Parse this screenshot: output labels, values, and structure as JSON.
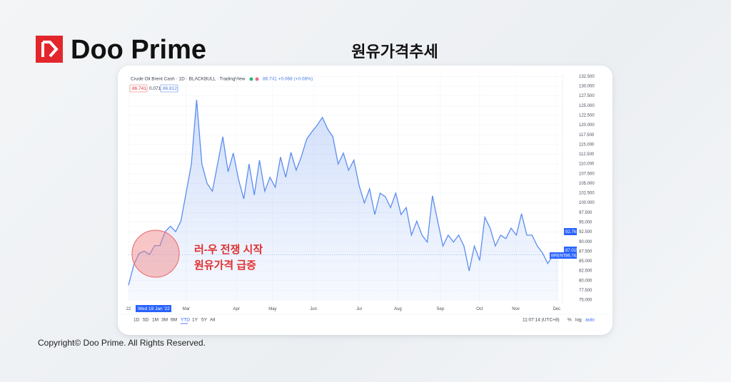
{
  "brand": "Doo Prime",
  "heading": "원유가격추세",
  "copyright": "Copyright© Doo Prime. All Rights Reserved.",
  "chart_data": {
    "type": "line",
    "title": "Crude Oil Brent Cash · 1D · BLACKBULL · TradingView",
    "legend_values": "86.741 +0.068 (+0.08%)",
    "badges": [
      "86.741",
      "0.071",
      "86.812"
    ],
    "annotation": [
      "러-우 전쟁 시작",
      "원유가격 급증"
    ],
    "crosshair_date": "Wed 19 Jan '22",
    "price_labels": [
      "92.761",
      "87.015",
      "86.741"
    ],
    "symbol": "BRENT",
    "ranges": [
      "1D",
      "5D",
      "1M",
      "3M",
      "6M",
      "YTD",
      "1Y",
      "5Y",
      "All"
    ],
    "active_range": "YTD",
    "clock": "11:07:14 (UTC+8)",
    "scale_buttons": [
      "%",
      "log",
      "auto"
    ],
    "color": "#5b8def",
    "grid": true,
    "values": [
      78.8,
      84,
      87,
      87.6,
      86.7,
      89,
      89,
      92.6,
      94,
      92.6,
      95.3,
      102.7,
      110,
      126.5,
      110,
      105,
      103,
      110,
      117,
      108,
      112.8,
      106,
      101,
      110,
      102,
      111,
      103,
      106.6,
      104,
      111.8,
      106.6,
      113,
      108.4,
      112,
      116.4,
      118.3,
      120,
      122,
      119,
      117,
      110,
      112.8,
      108.4,
      111,
      104.5,
      100,
      103.6,
      97,
      102.5,
      101.6,
      98.8,
      102.5,
      97,
      98.8,
      91.7,
      95.3,
      91.7,
      89.9,
      101.8,
      95.3,
      88.9,
      91.7,
      89.9,
      91.7,
      88.9,
      82.5,
      88.9,
      85.2,
      96.3,
      93.5,
      88.9,
      91.7,
      90.8,
      93.5,
      91.7,
      97.2,
      91.7,
      91.7,
      88.9,
      87.1,
      84.4,
      86.5,
      86.7
    ],
    "xlim": [
      0,
      82
    ],
    "xticks": [
      {
        "value": 0,
        "label": "22"
      },
      {
        "value": 11,
        "label": "Mar"
      },
      {
        "value": 20.6,
        "label": "Apr"
      },
      {
        "value": 27.5,
        "label": "May"
      },
      {
        "value": 35.3,
        "label": "Jun"
      },
      {
        "value": 44,
        "label": "Jul"
      },
      {
        "value": 51.4,
        "label": "Aug"
      },
      {
        "value": 59.5,
        "label": "Sep"
      },
      {
        "value": 67,
        "label": "Oct"
      },
      {
        "value": 73.9,
        "label": "Nov"
      },
      {
        "value": 81.7,
        "label": "Dec"
      }
    ],
    "ylim": [
      75,
      132.5
    ],
    "yticks": [
      {
        "value": 75,
        "label": "75.000"
      },
      {
        "value": 77.5,
        "label": "77.500"
      },
      {
        "value": 80,
        "label": "80.000"
      },
      {
        "value": 82.5,
        "label": "82.500"
      },
      {
        "value": 85,
        "label": "85.000"
      },
      {
        "value": 87.5,
        "label": "87.500"
      },
      {
        "value": 90,
        "label": "90.000"
      },
      {
        "value": 92.5,
        "label": "92.500"
      },
      {
        "value": 95,
        "label": "95.000"
      },
      {
        "value": 97.5,
        "label": "97.500"
      },
      {
        "value": 100,
        "label": "100.000"
      },
      {
        "value": 102.5,
        "label": "102.500"
      },
      {
        "value": 105,
        "label": "105.000"
      },
      {
        "value": 107.5,
        "label": "107.500"
      },
      {
        "value": 110,
        "label": "110.000"
      },
      {
        "value": 112.5,
        "label": "112.500"
      },
      {
        "value": 115,
        "label": "115.000"
      },
      {
        "value": 117.5,
        "label": "117.500"
      },
      {
        "value": 120,
        "label": "120.000"
      },
      {
        "value": 122.5,
        "label": "122.500"
      },
      {
        "value": 125,
        "label": "125.000"
      },
      {
        "value": 127.5,
        "label": "127.500"
      },
      {
        "value": 130,
        "label": "130.000"
      },
      {
        "value": 132.5,
        "label": "132.500"
      }
    ]
  }
}
